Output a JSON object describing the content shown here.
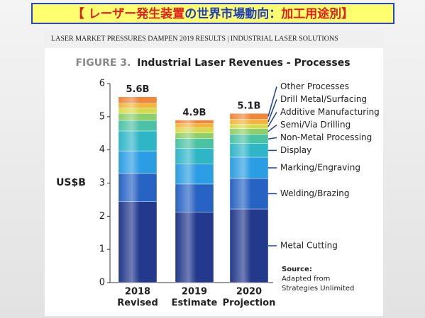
{
  "banner": [
    {
      "text": "【 レーザー発生装置",
      "color": "#e0201c"
    },
    {
      "text": "の世界市場動向：",
      "color": "#1f3fb8"
    },
    {
      "text": "加工用途別】",
      "color": "#e0201c"
    }
  ],
  "header": "LASER MARKET PRESSURES DAMPEN 2019 RESULTS | INDUSTRIAL LASER SOLUTIONS",
  "chart_data": {
    "type": "stacked_bar",
    "title_prefix": "FIGURE 3.",
    "title": "Industrial Laser Revenues - Processes",
    "y_label": "US$B",
    "categories": [
      "2018",
      "2019",
      "2020"
    ],
    "category_subtitles": [
      "Revised",
      "Estimate",
      "Projection"
    ],
    "ylim": [
      0,
      6
    ],
    "yticks": [
      0,
      1,
      2,
      3,
      4,
      5,
      6
    ],
    "grid": false,
    "totals": {
      "values": [
        5.6,
        4.9,
        5.1
      ],
      "value_labels": [
        "5.6B",
        "4.9B",
        "5.1B"
      ]
    },
    "series": [
      {
        "name": "Metal Cutting",
        "color": "#22398c",
        "values": [
          2.44,
          2.12,
          2.22
        ]
      },
      {
        "name": "Welding/Brazing",
        "color": "#2763c2",
        "values": [
          0.85,
          0.85,
          0.92
        ]
      },
      {
        "name": "Marking/Engraving",
        "color": "#2b9de2",
        "values": [
          0.68,
          0.6,
          0.64
        ]
      },
      {
        "name": "Display",
        "color": "#2fb6c6",
        "values": [
          0.6,
          0.47,
          0.41
        ]
      },
      {
        "name": "Non-Metal Processing",
        "color": "#4cc2a4",
        "values": [
          0.32,
          0.3,
          0.28
        ]
      },
      {
        "name": "Semi/Via Drilling",
        "color": "#8dcf68",
        "values": [
          0.21,
          0.17,
          0.17
        ]
      },
      {
        "name": "Additive Manufacturing",
        "color": "#d6db4e",
        "values": [
          0.16,
          0.15,
          0.13
        ]
      },
      {
        "name": "Drill Metal/Surfacing",
        "color": "#f2b63a",
        "values": [
          0.15,
          0.13,
          0.15
        ]
      },
      {
        "name": "Other Processes",
        "color": "#ee873a",
        "values": [
          0.19,
          0.11,
          0.18
        ]
      }
    ],
    "source": [
      "Source:",
      "Adapted from",
      "Strategies Unlimited"
    ]
  }
}
